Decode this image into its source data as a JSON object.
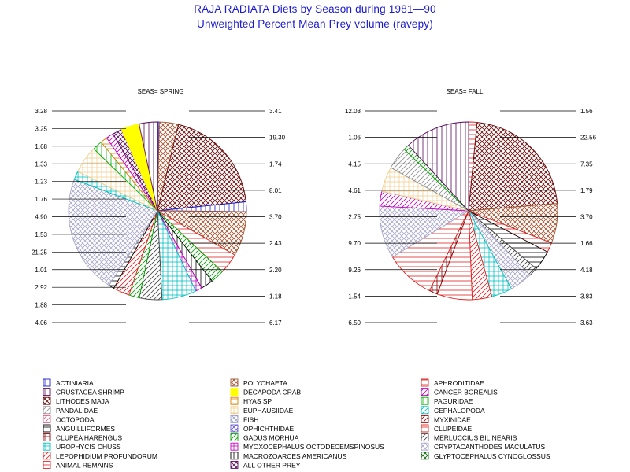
{
  "title": "RAJA RADIATA Diets by Season during 1981—90",
  "subtitle": "Unweighted Percent Mean Prey volume (ravepy)",
  "chart_data": [
    {
      "type": "pie",
      "title": "SEAS= SPRING",
      "slices": [
        {
          "label": "ACTINIARIA",
          "value": 0.33
        },
        {
          "label": "POLYCHAETA",
          "value": 3.41
        },
        {
          "label": "LITHODES MAJA",
          "value": 19.3
        },
        {
          "label": "ACTINIARIA",
          "value": 1.74
        },
        {
          "label": "POLYCHAETA",
          "value": 8.01
        },
        {
          "label": "APHRODITIDAE",
          "value": 3.7
        },
        {
          "label": "GADUS MORHUA",
          "value": 2.43
        },
        {
          "label": "MACROZOARCES AMERICANUS",
          "value": 2.2
        },
        {
          "label": "MYOXOCEPHALUS OCTODECEMSPINOSUS",
          "value": 1.18
        },
        {
          "label": "UROPHYCIS CHUSS",
          "value": 6.17
        },
        {
          "label": "MERLUCCIUS BILINEARIS",
          "value": 4.06
        },
        {
          "label": "GADUS MORHUA",
          "value": 1.88
        },
        {
          "label": "LEPOPHIDIUM PROFUNDORUM",
          "value": 2.92
        },
        {
          "label": "ANGUILLIFORMES",
          "value": 1.01
        },
        {
          "label": "CRYPTACANTHODES MACULATUS",
          "value": 21.25
        },
        {
          "label": "UROPHYCIS CHUSS",
          "value": 1.53
        },
        {
          "label": "EUPHAUSIIDAE",
          "value": 4.9
        },
        {
          "label": "PAGURIDAE",
          "value": 1.76
        },
        {
          "label": "HYAS SP",
          "value": 1.23
        },
        {
          "label": "CANCER BOREALIS",
          "value": 1.33
        },
        {
          "label": "ALL OTHER PREY",
          "value": 1.68
        },
        {
          "label": "DECAPODA CRAB",
          "value": 3.25
        },
        {
          "label": "CRUSTACEA SHRIMP",
          "value": 3.28
        }
      ],
      "labels_left": [
        "3.28",
        "3.25",
        "1.68",
        "1.33",
        "1.23",
        "1.76",
        "4.90",
        "1.53",
        "21.25",
        "1.01",
        "2.92",
        "1.88",
        "4.06"
      ],
      "labels_right": [
        "3.41",
        "19.30",
        "1.74",
        "8.01",
        "3.70",
        "2.43",
        "2.20",
        "1.18",
        "6.17"
      ]
    },
    {
      "type": "pie",
      "title": "SEAS= FALL",
      "slices": [
        {
          "label": "APHRODITIDAE",
          "value": 1.56
        },
        {
          "label": "LITHODES MAJA",
          "value": 22.56
        },
        {
          "label": "POLYCHAETA",
          "value": 7.35
        },
        {
          "label": "APHRODITIDAE",
          "value": 1.79
        },
        {
          "label": "ANGUILLIFORMES",
          "value": 3.7
        },
        {
          "label": "MERLUCCIUS BILINEARIS",
          "value": 1.66
        },
        {
          "label": "CRYPTACANTHODES MACULATUS",
          "value": 4.18
        },
        {
          "label": "UROPHYCIS CHUSS",
          "value": 3.83
        },
        {
          "label": "LEPOPHIDIUM PROFUNDORUM",
          "value": 3.63
        },
        {
          "label": "APHRODITIDAE",
          "value": 6.5
        },
        {
          "label": "CLUPEA HARENGUS",
          "value": 1.54
        },
        {
          "label": "ANIMAL REMAINS",
          "value": 9.26
        },
        {
          "label": "CRYPTACANTHODES MACULATUS",
          "value": 9.7
        },
        {
          "label": "CANCER BOREALIS",
          "value": 2.75
        },
        {
          "label": "EUPHAUSIIDAE",
          "value": 4.61
        },
        {
          "label": "PANDALIDAE",
          "value": 4.15
        },
        {
          "label": "GADUS MORHUA",
          "value": 1.06
        },
        {
          "label": "CRUSTACEA SHRIMP",
          "value": 12.03
        }
      ],
      "labels_left": [
        "12.03",
        "1.06",
        "4.15",
        "4.61",
        "2.75",
        "9.70",
        "9.26",
        "1.54",
        "6.50"
      ],
      "labels_right": [
        "1.56",
        "22.56",
        "7.35",
        "1.79",
        "3.70",
        "1.66",
        "4.18",
        "3.83",
        "3.63"
      ]
    }
  ],
  "legend": [
    {
      "label": "ACTINIARIA",
      "color": "#1a1ad0",
      "pattern": "vline"
    },
    {
      "label": "POLYCHAETA",
      "color": "#a0522d",
      "pattern": "cross"
    },
    {
      "label": "APHRODITIDAE",
      "color": "#e02020",
      "pattern": "hline"
    },
    {
      "label": "CRUSTACEA SHRIMP",
      "color": "#5a0a5a",
      "pattern": "vline"
    },
    {
      "label": "DECAPODA CRAB",
      "color": "#ffff00",
      "pattern": "solid"
    },
    {
      "label": "CANCER BOREALIS",
      "color": "#c000c0",
      "pattern": "diag"
    },
    {
      "label": "LITHODES MAJA",
      "color": "#6a0a0a",
      "pattern": "cross"
    },
    {
      "label": "HYAS SP",
      "color": "#e08000",
      "pattern": "hline"
    },
    {
      "label": "PAGURIDAE",
      "color": "#00b000",
      "pattern": "vline"
    },
    {
      "label": "PANDALIDAE",
      "color": "#909090",
      "pattern": "diag"
    },
    {
      "label": "EUPHAUSIIDAE",
      "color": "#f0d090",
      "pattern": "grid"
    },
    {
      "label": "CEPHALOPODA",
      "color": "#00c0c0",
      "pattern": "diag"
    },
    {
      "label": "OCTOPODA",
      "color": "#e06080",
      "pattern": "diag"
    },
    {
      "label": "FISH",
      "color": "#9aa0c8",
      "pattern": "cross"
    },
    {
      "label": "MYXINIDAE",
      "color": "#a00000",
      "pattern": "diag"
    },
    {
      "label": "ANGUILLIFORMES",
      "color": "#000000",
      "pattern": "hline"
    },
    {
      "label": "OPHICHTHIDAE",
      "color": "#6a5acd",
      "pattern": "cross"
    },
    {
      "label": "CLUPEIDAE",
      "color": "#e02020",
      "pattern": "hline"
    },
    {
      "label": "CLUPEA HARENGUS",
      "color": "#8b0000",
      "pattern": "grid"
    },
    {
      "label": "GADUS MORHUA",
      "color": "#00a000",
      "pattern": "diag"
    },
    {
      "label": "MERLUCCIUS BILINEARIS",
      "color": "#444444",
      "pattern": "diag"
    },
    {
      "label": "UROPHYCIS CHUSS",
      "color": "#00c0c0",
      "pattern": "grid"
    },
    {
      "label": "MYOXOCEPHALUS OCTODECEMSPINOSUS",
      "color": "#c000c0",
      "pattern": "grid"
    },
    {
      "label": "CRYPTACANTHODES MACULATUS",
      "color": "#a8a8c8",
      "pattern": "cross"
    },
    {
      "label": "LEPOPHIDIUM PROFUNDORUM",
      "color": "#e02020",
      "pattern": "diag"
    },
    {
      "label": "MACROZOARCES AMERICANUS",
      "color": "#000000",
      "pattern": "vline"
    },
    {
      "label": "GLYPTOCEPHALUS CYNOGLOSSUS",
      "color": "#006000",
      "pattern": "cross"
    },
    {
      "label": "ANIMAL REMAINS",
      "color": "#e02020",
      "pattern": "hline"
    },
    {
      "label": "ALL OTHER PREY",
      "color": "#5a0a5a",
      "pattern": "cross"
    }
  ]
}
